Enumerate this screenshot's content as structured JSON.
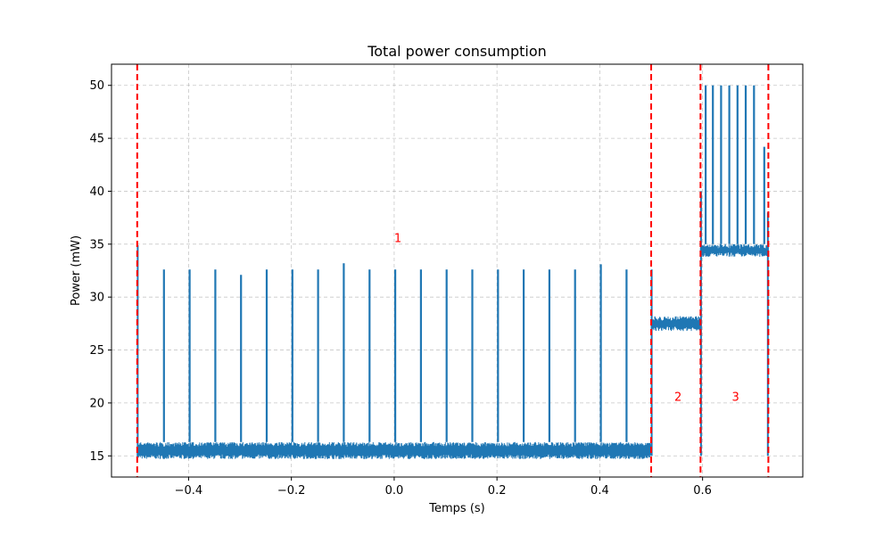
{
  "chart_data": {
    "type": "line",
    "title": "Total power consumption",
    "xlabel": "Temps (s)",
    "ylabel": "Power (mW)",
    "xlim": [
      -0.55,
      0.795
    ],
    "ylim": [
      13.0,
      52.0
    ],
    "xticks": [
      -0.4,
      -0.2,
      0.0,
      0.2,
      0.4,
      0.6
    ],
    "xtick_labels": [
      "−0.4",
      "−0.2",
      "0.0",
      "0.2",
      "0.4",
      "0.6"
    ],
    "yticks": [
      15,
      20,
      25,
      30,
      35,
      40,
      45,
      50
    ],
    "ytick_labels": [
      "15",
      "20",
      "25",
      "30",
      "35",
      "40",
      "45",
      "50"
    ],
    "grid": true,
    "series_color": "#1f77b4",
    "boundary_color": "#ff0000",
    "region_label_color": "#ff0000",
    "boundaries": [
      -0.5,
      0.5,
      0.596,
      0.728
    ],
    "region_labels": [
      {
        "text": "1",
        "x": 0.0,
        "y": 35.2
      },
      {
        "text": "2",
        "x": 0.545,
        "y": 20.2
      },
      {
        "text": "3",
        "x": 0.657,
        "y": 20.2
      }
    ],
    "phases": [
      {
        "x_start": -0.5,
        "x_end": 0.5,
        "baseline_low": 14.7,
        "baseline_high": 16.3,
        "spike_times": [
          -0.448,
          -0.398,
          -0.348,
          -0.298,
          -0.248,
          -0.198,
          -0.148,
          -0.098,
          -0.048,
          0.002,
          0.052,
          0.102,
          0.152,
          0.202,
          0.252,
          0.302,
          0.352,
          0.402,
          0.452
        ],
        "spike_peaks": [
          32.6,
          32.6,
          32.6,
          32.1,
          32.6,
          32.6,
          32.6,
          33.2,
          32.6,
          32.6,
          32.6,
          32.6,
          32.6,
          32.6,
          32.6,
          32.6,
          32.6,
          33.1,
          32.6
        ]
      },
      {
        "x_start": 0.5,
        "x_end": 0.596,
        "baseline_low": 26.8,
        "baseline_high": 28.2,
        "spike_times": [],
        "spike_peaks": []
      },
      {
        "x_start": 0.596,
        "x_end": 0.728,
        "baseline_low": 33.8,
        "baseline_high": 35.0,
        "spike_times": [
          0.606,
          0.62,
          0.636,
          0.652,
          0.668,
          0.684,
          0.7,
          0.72
        ],
        "spike_peaks": [
          50.0,
          50.0,
          50.0,
          50.0,
          50.0,
          50.0,
          50.0,
          44.2
        ]
      }
    ],
    "edge_spikes": [
      {
        "x": -0.499,
        "peak": 34.9
      },
      {
        "x": 0.501,
        "peak": 32.6
      },
      {
        "x": 0.597,
        "peak": 40.0
      },
      {
        "x": 0.727,
        "peak": 38.0
      }
    ]
  }
}
